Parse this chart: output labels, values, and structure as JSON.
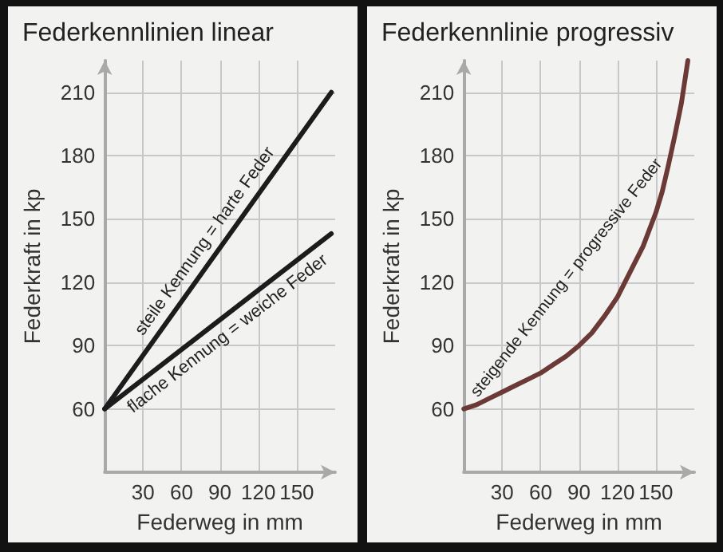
{
  "chart_data": [
    {
      "type": "line",
      "title": "Federkennlinien linear",
      "xlabel": "Federweg in mm",
      "ylabel": "Federkraft in kp",
      "x": [
        0,
        177
      ],
      "series": [
        {
          "name": "steile Kennung = harte Feder",
          "color": "#1c1c1c",
          "values": [
            60,
            210
          ]
        },
        {
          "name": "flache Kennung = weiche Feder",
          "color": "#1c1c1c",
          "values": [
            60,
            143
          ]
        }
      ],
      "xlim": [
        0,
        180
      ],
      "ylim": [
        30,
        225
      ],
      "xticks": [
        30,
        60,
        90,
        120,
        150
      ],
      "yticks": [
        60,
        90,
        120,
        150,
        180,
        210
      ],
      "grid": true,
      "marker": "none",
      "line_style": "solid"
    },
    {
      "type": "line",
      "title": "Federkennlinie progressiv",
      "xlabel": "Federweg in mm",
      "ylabel": "Federkraft in kp",
      "x": [
        0,
        10,
        20,
        30,
        40,
        50,
        60,
        70,
        80,
        90,
        100,
        110,
        120,
        130,
        140,
        150,
        155,
        160,
        165,
        170,
        175
      ],
      "series": [
        {
          "name": "steigende Kennung = progressive Feder",
          "color": "#6b3a36",
          "values": [
            60,
            62,
            65,
            68,
            71,
            74,
            77,
            81,
            85,
            90,
            96,
            104,
            113,
            125,
            137,
            153,
            163,
            176,
            190,
            205,
            225
          ]
        }
      ],
      "xlim": [
        0,
        180
      ],
      "ylim": [
        30,
        225
      ],
      "xticks": [
        30,
        60,
        90,
        120,
        150
      ],
      "yticks": [
        60,
        90,
        120,
        150,
        180,
        210
      ],
      "grid": true,
      "marker": "none",
      "line_style": "solid"
    }
  ]
}
